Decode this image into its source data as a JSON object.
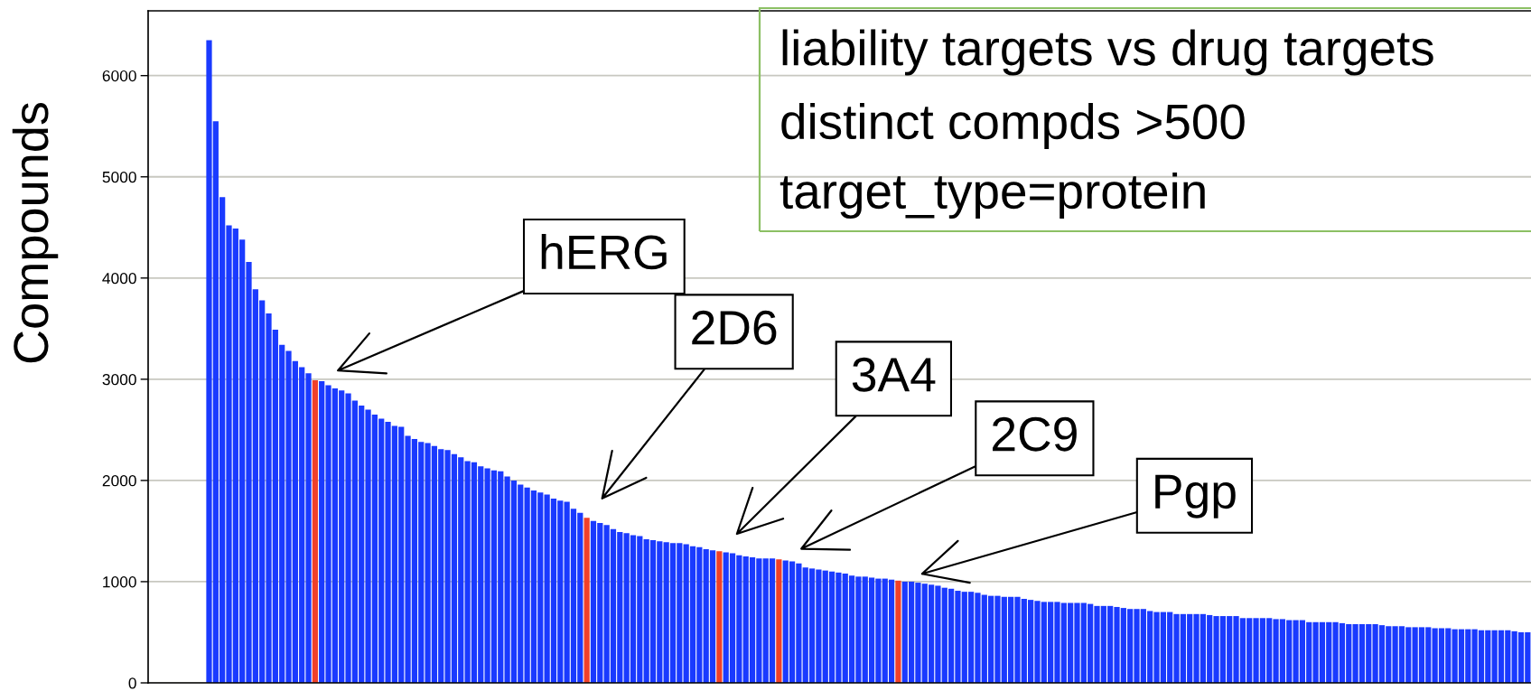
{
  "chart_data": {
    "type": "bar",
    "title": "liability targets vs drug targets",
    "subtitle": "distinct compds >500\ntarget_type=protein",
    "ylabel": "Compounds",
    "categories": [
      null,
      null,
      null,
      null,
      null,
      null,
      null,
      null,
      null,
      null,
      null,
      null,
      null,
      null,
      null,
      null,
      null,
      null,
      null,
      null,
      null,
      null,
      null,
      null,
      null,
      null,
      null,
      null,
      null,
      null,
      null,
      null,
      null,
      null,
      null,
      null,
      null,
      null,
      null,
      null,
      null,
      null,
      null,
      null,
      null,
      null,
      null,
      null,
      null,
      null,
      null,
      null,
      null,
      null,
      null,
      null,
      null,
      null,
      null,
      null,
      null,
      null,
      null,
      null,
      null,
      null,
      null,
      null,
      null,
      null,
      null,
      null,
      null,
      null,
      null,
      null,
      null,
      null,
      null,
      null,
      null,
      null,
      null,
      null,
      null,
      null,
      null,
      null,
      null,
      null,
      null,
      null,
      null,
      null,
      null,
      null,
      null,
      null,
      null,
      null,
      null,
      null,
      null,
      null,
      null,
      null,
      null,
      null,
      null,
      null,
      null,
      null,
      null,
      null,
      null,
      null,
      null,
      null,
      null,
      null,
      null,
      null,
      null,
      null,
      null,
      null,
      null,
      null,
      null,
      null,
      null,
      null,
      null,
      null,
      null,
      null,
      null,
      null,
      null,
      null,
      null,
      null,
      null,
      null,
      null,
      null,
      null,
      null,
      null,
      null,
      null,
      null,
      null,
      null,
      null,
      null,
      null,
      null,
      null,
      null,
      null,
      null,
      null,
      null,
      null,
      null,
      null,
      null,
      null,
      null,
      null,
      null,
      null,
      null,
      null,
      null,
      null,
      null,
      null,
      null,
      null,
      null,
      null,
      null,
      null,
      null,
      null,
      null,
      null,
      null,
      null,
      null,
      null,
      null,
      null,
      null,
      null,
      null,
      null,
      null
    ],
    "values": [
      6350,
      5550,
      4800,
      4520,
      4490,
      4380,
      4160,
      3890,
      3780,
      3650,
      3490,
      3340,
      3280,
      3180,
      3120,
      3060,
      2990,
      2980,
      2940,
      2910,
      2890,
      2860,
      2790,
      2740,
      2700,
      2650,
      2610,
      2580,
      2540,
      2530,
      2440,
      2410,
      2380,
      2370,
      2340,
      2310,
      2300,
      2260,
      2230,
      2190,
      2180,
      2140,
      2120,
      2100,
      2090,
      2040,
      2000,
      1960,
      1930,
      1900,
      1880,
      1860,
      1820,
      1800,
      1790,
      1720,
      1680,
      1630,
      1600,
      1580,
      1560,
      1520,
      1490,
      1480,
      1460,
      1450,
      1420,
      1410,
      1400,
      1390,
      1380,
      1380,
      1370,
      1350,
      1340,
      1320,
      1310,
      1300,
      1290,
      1280,
      1260,
      1250,
      1240,
      1230,
      1230,
      1230,
      1220,
      1210,
      1200,
      1180,
      1140,
      1130,
      1120,
      1110,
      1100,
      1090,
      1080,
      1060,
      1050,
      1050,
      1040,
      1030,
      1030,
      1020,
      1010,
      1000,
      1000,
      990,
      980,
      970,
      960,
      940,
      930,
      910,
      900,
      900,
      890,
      870,
      860,
      860,
      850,
      850,
      850,
      830,
      820,
      810,
      800,
      800,
      800,
      790,
      790,
      790,
      790,
      780,
      760,
      760,
      760,
      750,
      740,
      730,
      730,
      730,
      710,
      700,
      700,
      700,
      680,
      680,
      680,
      680,
      680,
      670,
      660,
      660,
      660,
      660,
      640,
      640,
      640,
      640,
      640,
      630,
      630,
      620,
      620,
      620,
      600,
      600,
      600,
      600,
      600,
      590,
      580,
      580,
      580,
      580,
      580,
      570,
      560,
      560,
      560,
      550,
      550,
      550,
      550,
      540,
      540,
      540,
      530,
      530,
      530,
      530,
      520,
      520,
      520,
      520,
      520,
      510,
      500,
      500
    ],
    "colors": [
      "#1a3aff",
      "#1a3aff",
      "#1a3aff",
      "#1a3aff",
      "#1a3aff",
      "#1a3aff",
      "#1a3aff",
      "#1a3aff",
      "#1a3aff",
      "#1a3aff",
      "#1a3aff",
      "#1a3aff",
      "#1a3aff",
      "#1a3aff",
      "#1a3aff",
      "#1a3aff",
      "#f0402a",
      "#1a3aff",
      "#1a3aff",
      "#1a3aff",
      "#1a3aff",
      "#1a3aff",
      "#1a3aff",
      "#1a3aff",
      "#1a3aff",
      "#1a3aff",
      "#1a3aff",
      "#1a3aff",
      "#1a3aff",
      "#1a3aff",
      "#1a3aff",
      "#1a3aff",
      "#1a3aff",
      "#1a3aff",
      "#1a3aff",
      "#1a3aff",
      "#1a3aff",
      "#1a3aff",
      "#1a3aff",
      "#1a3aff",
      "#1a3aff",
      "#1a3aff",
      "#1a3aff",
      "#1a3aff",
      "#1a3aff",
      "#1a3aff",
      "#1a3aff",
      "#1a3aff",
      "#1a3aff",
      "#1a3aff",
      "#1a3aff",
      "#1a3aff",
      "#1a3aff",
      "#1a3aff",
      "#1a3aff",
      "#1a3aff",
      "#1a3aff",
      "#f0402a",
      "#1a3aff",
      "#1a3aff",
      "#1a3aff",
      "#1a3aff",
      "#1a3aff",
      "#1a3aff",
      "#1a3aff",
      "#1a3aff",
      "#1a3aff",
      "#1a3aff",
      "#1a3aff",
      "#1a3aff",
      "#1a3aff",
      "#1a3aff",
      "#1a3aff",
      "#1a3aff",
      "#1a3aff",
      "#1a3aff",
      "#1a3aff",
      "#f0402a",
      "#1a3aff",
      "#1a3aff",
      "#1a3aff",
      "#1a3aff",
      "#1a3aff",
      "#1a3aff",
      "#1a3aff",
      "#1a3aff",
      "#f0402a",
      "#1a3aff",
      "#1a3aff",
      "#1a3aff",
      "#1a3aff",
      "#1a3aff",
      "#1a3aff",
      "#1a3aff",
      "#1a3aff",
      "#1a3aff",
      "#1a3aff",
      "#1a3aff",
      "#1a3aff",
      "#1a3aff",
      "#1a3aff",
      "#1a3aff",
      "#1a3aff",
      "#1a3aff",
      "#f0402a",
      "#1a3aff",
      "#1a3aff",
      "#1a3aff",
      "#1a3aff",
      "#1a3aff",
      "#1a3aff",
      "#1a3aff",
      "#1a3aff",
      "#1a3aff",
      "#1a3aff",
      "#1a3aff",
      "#1a3aff",
      "#1a3aff",
      "#1a3aff",
      "#1a3aff",
      "#1a3aff",
      "#1a3aff",
      "#1a3aff",
      "#1a3aff",
      "#1a3aff",
      "#1a3aff",
      "#1a3aff",
      "#1a3aff",
      "#1a3aff",
      "#1a3aff",
      "#1a3aff",
      "#1a3aff",
      "#1a3aff",
      "#1a3aff",
      "#1a3aff",
      "#1a3aff",
      "#1a3aff",
      "#1a3aff",
      "#1a3aff",
      "#1a3aff",
      "#1a3aff",
      "#1a3aff",
      "#1a3aff",
      "#1a3aff",
      "#1a3aff",
      "#1a3aff",
      "#1a3aff",
      "#1a3aff",
      "#1a3aff",
      "#1a3aff",
      "#1a3aff",
      "#1a3aff",
      "#1a3aff",
      "#1a3aff",
      "#1a3aff",
      "#1a3aff",
      "#1a3aff",
      "#1a3aff",
      "#1a3aff",
      "#1a3aff",
      "#1a3aff",
      "#1a3aff",
      "#1a3aff",
      "#1a3aff",
      "#1a3aff",
      "#1a3aff",
      "#1a3aff",
      "#1a3aff",
      "#1a3aff",
      "#1a3aff",
      "#1a3aff",
      "#1a3aff",
      "#1a3aff",
      "#1a3aff",
      "#1a3aff",
      "#1a3aff",
      "#1a3aff",
      "#1a3aff",
      "#1a3aff",
      "#1a3aff",
      "#1a3aff",
      "#1a3aff",
      "#1a3aff",
      "#1a3aff",
      "#1a3aff",
      "#1a3aff",
      "#1a3aff",
      "#1a3aff",
      "#1a3aff",
      "#1a3aff",
      "#1a3aff",
      "#1a3aff",
      "#1a3aff",
      "#1a3aff",
      "#1a3aff",
      "#1a3aff",
      "#1a3aff",
      "#1a3aff",
      "#1a3aff",
      "#1a3aff"
    ],
    "ylim": [
      0,
      6640
    ],
    "yticks": [
      0,
      1000,
      2000,
      3000,
      4000,
      5000,
      6000
    ],
    "grid": "y",
    "tick_labels": "y",
    "annotations": [
      "hERG",
      "2D6",
      "3A4",
      "2C9",
      "Pgp"
    ]
  }
}
